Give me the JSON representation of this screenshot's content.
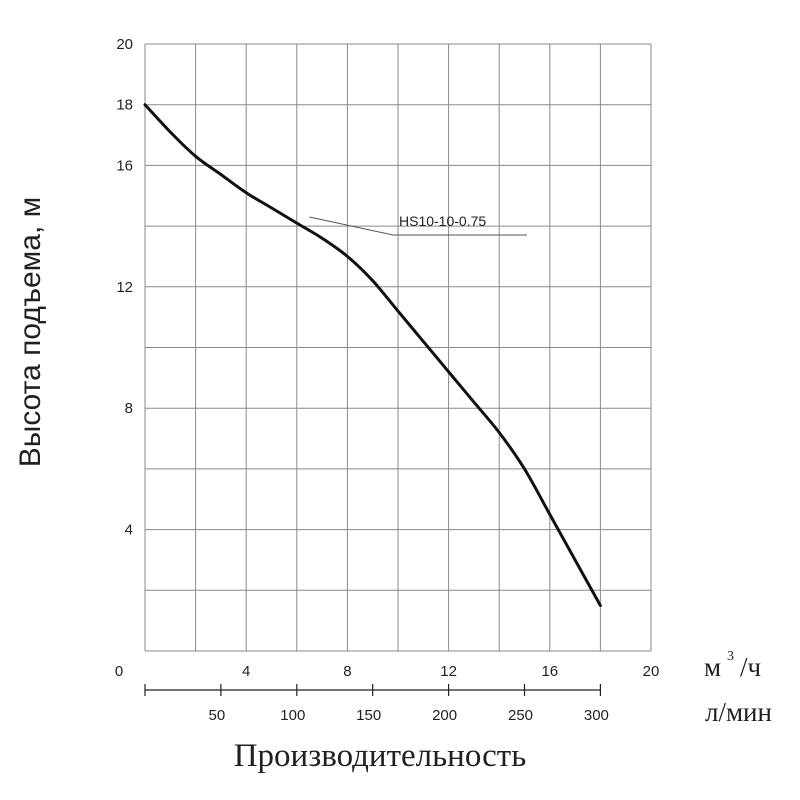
{
  "chart_data": {
    "type": "line",
    "xlabel": "Производительность",
    "ylabel": "Высота подъема, м",
    "xlim": [
      0,
      20
    ],
    "ylim": [
      0,
      20
    ],
    "x_unit_primary": {
      "unit": "м",
      "sup": "3",
      "rest": "/ч"
    },
    "x_unit_secondary": "л/мин",
    "y_ticks": [
      "20",
      "18",
      "16",
      "12",
      "8",
      "4"
    ],
    "y_tick_values": [
      20,
      18,
      16,
      12,
      8,
      4
    ],
    "x_ticks": [
      "0",
      "4",
      "8",
      "12",
      "16",
      "20"
    ],
    "x_tick_values": [
      0,
      4,
      8,
      12,
      16,
      20
    ],
    "x2_ticks": [
      "50",
      "100",
      "150",
      "200",
      "250",
      "300"
    ],
    "x2_tick_values": [
      50,
      100,
      150,
      200,
      250,
      300
    ],
    "grid": true,
    "series": [
      {
        "name": "HS10-10-0.75",
        "color": "#111111",
        "points": [
          [
            0,
            18.0
          ],
          [
            1,
            17.1
          ],
          [
            2,
            16.3
          ],
          [
            3,
            15.7
          ],
          [
            4,
            15.1
          ],
          [
            5,
            14.6
          ],
          [
            6,
            14.1
          ],
          [
            7,
            13.6
          ],
          [
            8,
            13.0
          ],
          [
            9,
            12.2
          ],
          [
            10,
            11.2
          ],
          [
            11,
            10.2
          ],
          [
            12,
            9.2
          ],
          [
            13,
            8.2
          ],
          [
            14,
            7.2
          ],
          [
            15,
            6.0
          ],
          [
            16,
            4.5
          ],
          [
            17,
            3.0
          ],
          [
            18,
            1.5
          ]
        ]
      }
    ],
    "annotation": {
      "text": "HS10-10-0.75",
      "point": [
        6.5,
        14.3
      ]
    }
  }
}
